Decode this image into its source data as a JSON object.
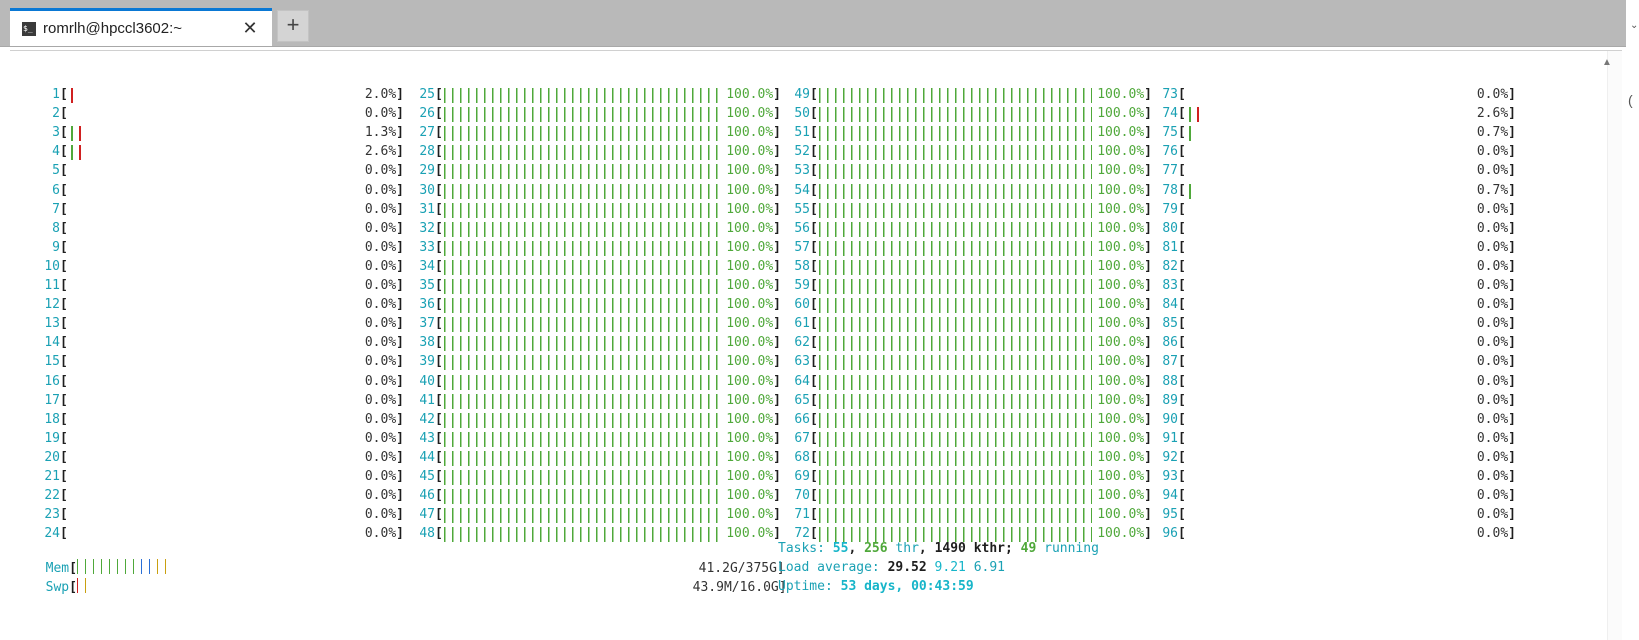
{
  "tab": {
    "title": "romrlh@hpccl3602:~",
    "icon": "terminal-icon",
    "close": "✕",
    "new_tab": "+"
  },
  "cpus": [
    {
      "id": "1",
      "pct": "2.0%]",
      "bar": 0.02
    },
    {
      "id": "2",
      "pct": "0.0%]",
      "bar": 0
    },
    {
      "id": "3",
      "pct": "1.3%]",
      "bar": 0.013
    },
    {
      "id": "4",
      "pct": "2.6%]",
      "bar": 0.026
    },
    {
      "id": "5",
      "pct": "0.0%]",
      "bar": 0
    },
    {
      "id": "6",
      "pct": "0.0%]",
      "bar": 0
    },
    {
      "id": "7",
      "pct": "0.0%]",
      "bar": 0
    },
    {
      "id": "8",
      "pct": "0.0%]",
      "bar": 0
    },
    {
      "id": "9",
      "pct": "0.0%]",
      "bar": 0
    },
    {
      "id": "10",
      "pct": "0.0%]",
      "bar": 0
    },
    {
      "id": "11",
      "pct": "0.0%]",
      "bar": 0
    },
    {
      "id": "12",
      "pct": "0.0%]",
      "bar": 0
    },
    {
      "id": "13",
      "pct": "0.0%]",
      "bar": 0
    },
    {
      "id": "14",
      "pct": "0.0%]",
      "bar": 0
    },
    {
      "id": "15",
      "pct": "0.0%]",
      "bar": 0
    },
    {
      "id": "16",
      "pct": "0.0%]",
      "bar": 0
    },
    {
      "id": "17",
      "pct": "0.0%]",
      "bar": 0
    },
    {
      "id": "18",
      "pct": "0.0%]",
      "bar": 0
    },
    {
      "id": "19",
      "pct": "0.0%]",
      "bar": 0
    },
    {
      "id": "20",
      "pct": "0.0%]",
      "bar": 0
    },
    {
      "id": "21",
      "pct": "0.0%]",
      "bar": 0
    },
    {
      "id": "22",
      "pct": "0.0%]",
      "bar": 0
    },
    {
      "id": "23",
      "pct": "0.0%]",
      "bar": 0
    },
    {
      "id": "24",
      "pct": "0.0%]",
      "bar": 0
    },
    {
      "id": "25",
      "pct": "100.0%]",
      "bar": 1
    },
    {
      "id": "26",
      "pct": "100.0%]",
      "bar": 1
    },
    {
      "id": "27",
      "pct": "100.0%]",
      "bar": 1
    },
    {
      "id": "28",
      "pct": "100.0%]",
      "bar": 1
    },
    {
      "id": "29",
      "pct": "100.0%]",
      "bar": 1
    },
    {
      "id": "30",
      "pct": "100.0%]",
      "bar": 1
    },
    {
      "id": "31",
      "pct": "100.0%]",
      "bar": 1
    },
    {
      "id": "32",
      "pct": "100.0%]",
      "bar": 1
    },
    {
      "id": "33",
      "pct": "100.0%]",
      "bar": 1
    },
    {
      "id": "34",
      "pct": "100.0%]",
      "bar": 1
    },
    {
      "id": "35",
      "pct": "100.0%]",
      "bar": 1
    },
    {
      "id": "36",
      "pct": "100.0%]",
      "bar": 1
    },
    {
      "id": "37",
      "pct": "100.0%]",
      "bar": 1
    },
    {
      "id": "38",
      "pct": "100.0%]",
      "bar": 1
    },
    {
      "id": "39",
      "pct": "100.0%]",
      "bar": 1
    },
    {
      "id": "40",
      "pct": "100.0%]",
      "bar": 1
    },
    {
      "id": "41",
      "pct": "100.0%]",
      "bar": 1
    },
    {
      "id": "42",
      "pct": "100.0%]",
      "bar": 1
    },
    {
      "id": "43",
      "pct": "100.0%]",
      "bar": 1
    },
    {
      "id": "44",
      "pct": "100.0%]",
      "bar": 1
    },
    {
      "id": "45",
      "pct": "100.0%]",
      "bar": 1
    },
    {
      "id": "46",
      "pct": "100.0%]",
      "bar": 1
    },
    {
      "id": "47",
      "pct": "100.0%]",
      "bar": 1
    },
    {
      "id": "48",
      "pct": "100.0%]",
      "bar": 1
    },
    {
      "id": "49",
      "pct": "100.0%]",
      "bar": 1
    },
    {
      "id": "50",
      "pct": "100.0%]",
      "bar": 1
    },
    {
      "id": "51",
      "pct": "100.0%]",
      "bar": 1
    },
    {
      "id": "52",
      "pct": "100.0%]",
      "bar": 1
    },
    {
      "id": "53",
      "pct": "100.0%]",
      "bar": 1
    },
    {
      "id": "54",
      "pct": "100.0%]",
      "bar": 1
    },
    {
      "id": "55",
      "pct": "100.0%]",
      "bar": 1
    },
    {
      "id": "56",
      "pct": "100.0%]",
      "bar": 1
    },
    {
      "id": "57",
      "pct": "100.0%]",
      "bar": 1
    },
    {
      "id": "58",
      "pct": "100.0%]",
      "bar": 1
    },
    {
      "id": "59",
      "pct": "100.0%]",
      "bar": 1
    },
    {
      "id": "60",
      "pct": "100.0%]",
      "bar": 1
    },
    {
      "id": "61",
      "pct": "100.0%]",
      "bar": 1
    },
    {
      "id": "62",
      "pct": "100.0%]",
      "bar": 1
    },
    {
      "id": "63",
      "pct": "100.0%]",
      "bar": 1
    },
    {
      "id": "64",
      "pct": "100.0%]",
      "bar": 1
    },
    {
      "id": "65",
      "pct": "100.0%]",
      "bar": 1
    },
    {
      "id": "66",
      "pct": "100.0%]",
      "bar": 1
    },
    {
      "id": "67",
      "pct": "100.0%]",
      "bar": 1
    },
    {
      "id": "68",
      "pct": "100.0%]",
      "bar": 1
    },
    {
      "id": "69",
      "pct": "100.0%]",
      "bar": 1
    },
    {
      "id": "70",
      "pct": "100.0%]",
      "bar": 1
    },
    {
      "id": "71",
      "pct": "100.0%]",
      "bar": 1
    },
    {
      "id": "72",
      "pct": "100.0%]",
      "bar": 1
    },
    {
      "id": "73",
      "pct": "0.0%]",
      "bar": 0
    },
    {
      "id": "74",
      "pct": "2.6%]",
      "bar": 0.026
    },
    {
      "id": "75",
      "pct": "0.7%]",
      "bar": 0.007
    },
    {
      "id": "76",
      "pct": "0.0%]",
      "bar": 0
    },
    {
      "id": "77",
      "pct": "0.0%]",
      "bar": 0
    },
    {
      "id": "78",
      "pct": "0.7%]",
      "bar": 0.007
    },
    {
      "id": "79",
      "pct": "0.0%]",
      "bar": 0
    },
    {
      "id": "80",
      "pct": "0.0%]",
      "bar": 0
    },
    {
      "id": "81",
      "pct": "0.0%]",
      "bar": 0
    },
    {
      "id": "82",
      "pct": "0.0%]",
      "bar": 0
    },
    {
      "id": "83",
      "pct": "0.0%]",
      "bar": 0
    },
    {
      "id": "84",
      "pct": "0.0%]",
      "bar": 0
    },
    {
      "id": "85",
      "pct": "0.0%]",
      "bar": 0
    },
    {
      "id": "86",
      "pct": "0.0%]",
      "bar": 0
    },
    {
      "id": "87",
      "pct": "0.0%]",
      "bar": 0
    },
    {
      "id": "88",
      "pct": "0.0%]",
      "bar": 0
    },
    {
      "id": "89",
      "pct": "0.0%]",
      "bar": 0
    },
    {
      "id": "90",
      "pct": "0.0%]",
      "bar": 0
    },
    {
      "id": "91",
      "pct": "0.0%]",
      "bar": 0
    },
    {
      "id": "92",
      "pct": "0.0%]",
      "bar": 0
    },
    {
      "id": "93",
      "pct": "0.0%]",
      "bar": 0
    },
    {
      "id": "94",
      "pct": "0.0%]",
      "bar": 0
    },
    {
      "id": "95",
      "pct": "0.0%]",
      "bar": 0
    },
    {
      "id": "96",
      "pct": "0.0%]",
      "bar": 0
    }
  ],
  "mem": {
    "label": "Mem",
    "value": "41.2G/375G]"
  },
  "swp": {
    "label": "Swp",
    "value": "43.9M/16.0G]"
  },
  "tasks": {
    "label": "Tasks: ",
    "count": "55",
    "sep1": ", ",
    "thr": "256",
    "thr_label": " thr",
    "sep2": ", ",
    "kthr": "1490",
    "kthr_label": " kthr",
    "sep3": "; ",
    "running": "49",
    "running_label": " running"
  },
  "load": {
    "label": "Load average: ",
    "one": "29.52",
    "five": "9.21",
    "fifteen": "6.91"
  },
  "uptime": {
    "label": "Uptime: ",
    "value": "53 days, 00:43:59"
  }
}
